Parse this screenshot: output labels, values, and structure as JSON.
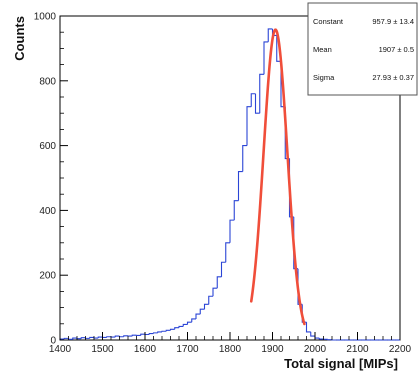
{
  "chart_data": {
    "type": "histogram",
    "xlabel": "Total signal [MIPs]",
    "ylabel": "Counts",
    "xlim": [
      1400,
      2200
    ],
    "ylim": [
      0,
      1000
    ],
    "xticks": [
      1400,
      1500,
      1600,
      1700,
      1800,
      1900,
      2000,
      2100,
      2200
    ],
    "yticks": [
      0,
      200,
      400,
      600,
      800,
      1000
    ],
    "bin_width": 10,
    "colors": {
      "histogram": "#2b45d6",
      "fit": "#f04e3a",
      "frame": "#000000"
    },
    "histogram": {
      "name": "",
      "bin_low_edges": [
        1400,
        1410,
        1420,
        1430,
        1440,
        1450,
        1460,
        1470,
        1480,
        1490,
        1500,
        1510,
        1520,
        1530,
        1540,
        1550,
        1560,
        1570,
        1580,
        1590,
        1600,
        1610,
        1620,
        1630,
        1640,
        1650,
        1660,
        1670,
        1680,
        1690,
        1700,
        1710,
        1720,
        1730,
        1740,
        1750,
        1760,
        1770,
        1780,
        1790,
        1800,
        1810,
        1820,
        1830,
        1840,
        1850,
        1860,
        1870,
        1880,
        1890,
        1900,
        1910,
        1920,
        1930,
        1940,
        1950,
        1960,
        1970,
        1980,
        1990,
        2000,
        2010,
        2020,
        2030,
        2040,
        2050,
        2060,
        2070,
        2080,
        2090,
        2100,
        2110,
        2120,
        2130,
        2140,
        2150,
        2160,
        2170,
        2180,
        2190
      ],
      "counts": [
        3,
        5,
        2,
        6,
        4,
        7,
        5,
        8,
        6,
        9,
        8,
        10,
        9,
        12,
        10,
        13,
        12,
        15,
        14,
        18,
        17,
        20,
        22,
        25,
        27,
        30,
        33,
        38,
        42,
        48,
        55,
        65,
        80,
        95,
        110,
        135,
        160,
        195,
        240,
        300,
        370,
        430,
        520,
        600,
        720,
        760,
        700,
        820,
        920,
        960,
        940,
        860,
        720,
        560,
        380,
        220,
        110,
        55,
        25,
        12,
        6,
        3,
        2,
        1,
        0,
        0,
        0,
        0,
        0,
        0,
        0,
        0,
        0,
        0,
        0,
        0,
        0,
        0,
        0,
        0
      ]
    },
    "fit": {
      "type": "gaussian",
      "range": [
        1850,
        1975
      ],
      "constant": 957.9,
      "mean": 1907,
      "sigma": 27.93
    },
    "stats_box": {
      "placement": "top-right",
      "rows": [
        {
          "label": "Constant",
          "value": "957.9 ± 13.4"
        },
        {
          "label": "Mean",
          "value": "1907 ± 0.5"
        },
        {
          "label": "Sigma",
          "value": "27.93 ± 0.37"
        }
      ]
    },
    "grid": false
  }
}
